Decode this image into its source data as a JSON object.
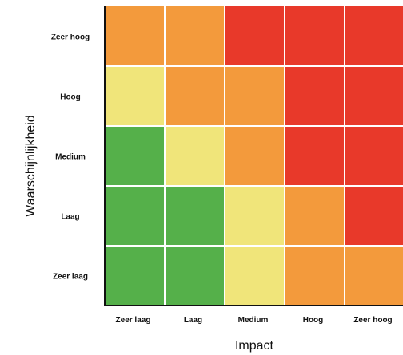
{
  "chart_data": {
    "type": "heatmap",
    "title": "",
    "xlabel": "Impact",
    "ylabel": "Waarschijnlijkheid",
    "x_categories": [
      "Zeer laag",
      "Laag",
      "Medium",
      "Hoog",
      "Zeer hoog"
    ],
    "y_categories": [
      "Zeer laag",
      "Laag",
      "Medium",
      "Hoog",
      "Zeer hoog"
    ],
    "levels": {
      "green": "#55b04a",
      "yellow": "#f0e57a",
      "orange": "#f39a3c",
      "red": "#e8392a"
    },
    "grid_color": "#ffffff",
    "frame_color": "#111111",
    "cells_by_row_top_to_bottom": [
      [
        "orange",
        "orange",
        "red",
        "red",
        "red"
      ],
      [
        "yellow",
        "orange",
        "orange",
        "red",
        "red"
      ],
      [
        "green",
        "yellow",
        "orange",
        "red",
        "red"
      ],
      [
        "green",
        "green",
        "yellow",
        "orange",
        "red"
      ],
      [
        "green",
        "green",
        "yellow",
        "orange",
        "orange"
      ]
    ]
  }
}
